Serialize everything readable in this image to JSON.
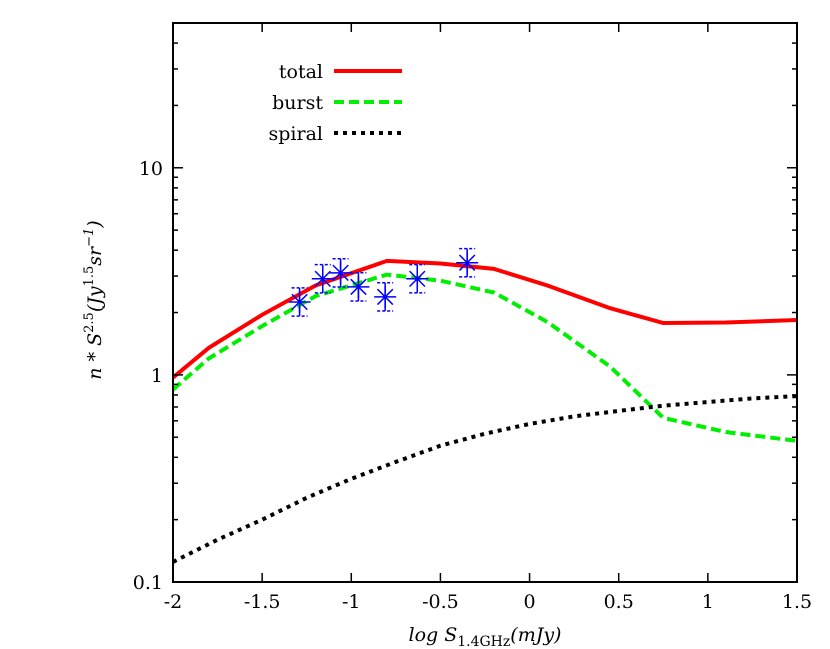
{
  "chart_data": {
    "type": "line",
    "title": "",
    "xlabel": {
      "main": "log S",
      "sub": "1.4GHz",
      "tail": "(mJy)"
    },
    "ylabel": {
      "a": "n * S",
      "sup1": "2.5",
      "b": "(Jy",
      "sup2": "1.5",
      "c": "sr",
      "sup3": "−1",
      "d": ")"
    },
    "xlim": [
      -2,
      1.5
    ],
    "ylim": [
      0.1,
      50
    ],
    "yscale": "log",
    "xticks": [
      -2,
      -1.5,
      -1,
      -0.5,
      0,
      0.5,
      1,
      1.5
    ],
    "xtick_labels": [
      "-2",
      "-1.5",
      "-1",
      "-0.5",
      "0",
      "0.5",
      "1",
      "1.5"
    ],
    "yticks": [
      0.1,
      1,
      10
    ],
    "ytick_labels": [
      "0.1",
      "1",
      "10"
    ],
    "grid": false,
    "legend_placement": "top-left",
    "series": [
      {
        "name": "total",
        "color": "#ff0000",
        "style": "solid",
        "x": [
          -2,
          -1.8,
          -1.5,
          -1.2,
          -0.8,
          -0.5,
          -0.2,
          0.1,
          0.45,
          0.75,
          1.1,
          1.5
        ],
        "y": [
          0.97,
          1.35,
          1.95,
          2.7,
          3.55,
          3.45,
          3.25,
          2.7,
          2.1,
          1.78,
          1.79,
          1.84
        ]
      },
      {
        "name": "burst",
        "color": "#00ee00",
        "style": "dashed",
        "x": [
          -2,
          -1.8,
          -1.5,
          -1.2,
          -0.8,
          -0.5,
          -0.2,
          0.1,
          0.45,
          0.75,
          1.1,
          1.5
        ],
        "y": [
          0.85,
          1.2,
          1.72,
          2.4,
          3.05,
          2.85,
          2.5,
          1.8,
          1.1,
          0.62,
          0.53,
          0.48
        ]
      },
      {
        "name": "spiral",
        "color": "#000000",
        "style": "dotted",
        "x": [
          -2,
          -1.75,
          -1.5,
          -1.25,
          -1,
          -0.75,
          -0.5,
          -0.25,
          0,
          0.25,
          0.5,
          0.75,
          1,
          1.25,
          1.5
        ],
        "y": [
          0.125,
          0.16,
          0.2,
          0.255,
          0.315,
          0.38,
          0.455,
          0.52,
          0.58,
          0.63,
          0.67,
          0.71,
          0.74,
          0.77,
          0.79
        ]
      }
    ],
    "points": {
      "color": "#0000ff",
      "marker": "asterisk",
      "x": [
        -1.29,
        -1.16,
        -1.06,
        -0.96,
        -0.81,
        -0.63,
        -0.35
      ],
      "y": [
        2.25,
        2.91,
        3.11,
        2.66,
        2.38,
        2.91,
        3.48
      ],
      "y_err_factor": 1.17
    }
  }
}
